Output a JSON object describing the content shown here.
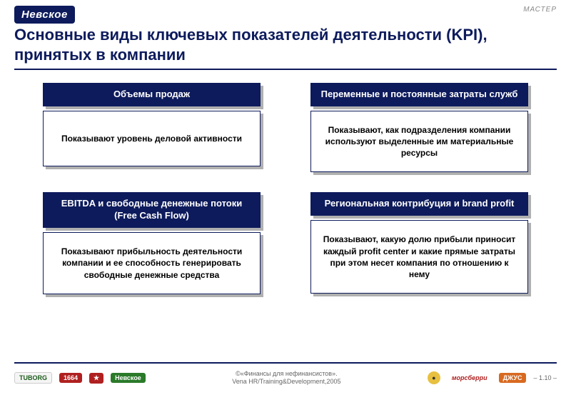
{
  "logo_text": "Невское",
  "top_right": "МАСТЕР",
  "title": "Основные виды ключевых показателей деятельности (KPI), принятых в компании",
  "cards": [
    {
      "header": "Объемы продаж",
      "body": "Показывают уровень деловой активности"
    },
    {
      "header": "Переменные и постоянные затраты служб",
      "body": "Показывают, как подразделения компании используют выделенные им материальные ресурсы"
    },
    {
      "header": "EBITDA и свободные денежные потоки (Free Cash Flow)",
      "body": "Показывают прибыльность деятельности компании и ее способность генерировать свободные денежные средства"
    },
    {
      "header": "Региональная контрибуция и brand profit",
      "body": "Показывают, какую долю прибыли приносит каждый profit center и какие прямые затраты при этом несет компания по отношению к нему"
    }
  ],
  "footer": {
    "center_line1": "©«Финансы для нефинансистов».",
    "center_line2": "Vena HR/Training&Development,2005",
    "page": "– 1.10 –",
    "logos": {
      "tuborg": "TUBORG",
      "b2": "1664",
      "b3": "★",
      "b4": "Невское",
      "b5": "●",
      "b6": "морсберри",
      "b7": "ДЖУС"
    }
  },
  "colors": {
    "primary": "#0d1b5c",
    "shadow": "#b0b0b0",
    "background": "#ffffff",
    "text": "#000000"
  }
}
